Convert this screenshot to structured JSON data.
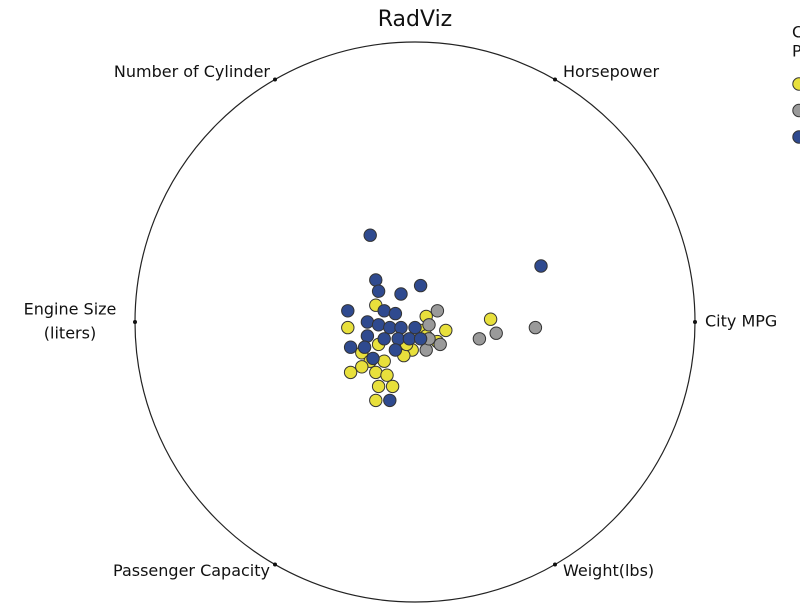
{
  "chart_data": {
    "type": "radviz",
    "title": "RadViz",
    "anchors": [
      [
        "City MPG"
      ],
      [
        "Horsepower"
      ],
      [
        "Number of Cylinder"
      ],
      [
        "Engine Size",
        "(liters)"
      ],
      [
        "Passenger Capacity"
      ],
      [
        "Weight(lbs)"
      ]
    ],
    "legend_title": [
      "C",
      "P"
    ],
    "xlim": [
      -1,
      1
    ],
    "ylim": [
      -1,
      1
    ],
    "series": [
      {
        "color": "#e8e03c",
        "x": [
          -0.14,
          -0.24,
          0.04,
          0.11,
          0.27,
          0.08,
          0.02,
          -0.01,
          -0.04,
          -0.13,
          -0.19,
          -0.16,
          -0.11,
          -0.23,
          -0.19,
          -0.14,
          -0.1,
          -0.13,
          -0.08,
          -0.14,
          -0.03,
          0.04
        ],
        "y": [
          0.06,
          -0.02,
          0.02,
          -0.03,
          0.01,
          -0.07,
          -0.03,
          -0.1,
          -0.12,
          -0.08,
          -0.11,
          -0.14,
          -0.14,
          -0.18,
          -0.16,
          -0.18,
          -0.19,
          -0.23,
          -0.23,
          -0.28,
          -0.08,
          -0.05
        ]
      },
      {
        "color": "#9a9a9a",
        "x": [
          0.08,
          0.05,
          0.04,
          0.23,
          0.29,
          0.43,
          0.09,
          0.05
        ],
        "y": [
          0.04,
          -0.01,
          -0.1,
          -0.06,
          -0.04,
          -0.02,
          -0.08,
          -0.06
        ]
      },
      {
        "color": "#2f4a8f",
        "x": [
          -0.16,
          0.45,
          -0.14,
          -0.13,
          -0.05,
          0.02,
          -0.24,
          -0.11,
          -0.07,
          -0.17,
          -0.13,
          -0.09,
          -0.05,
          0,
          -0.17,
          -0.11,
          -0.06,
          -0.23,
          -0.18,
          -0.07,
          -0.02,
          -0.09,
          -0.15,
          0.02
        ],
        "y": [
          0.31,
          0.2,
          0.15,
          0.11,
          0.1,
          0.13,
          0.04,
          0.04,
          0.03,
          0,
          -0.01,
          -0.02,
          -0.02,
          -0.02,
          -0.05,
          -0.06,
          -0.06,
          -0.09,
          -0.09,
          -0.1,
          -0.06,
          -0.28,
          -0.13,
          -0.06
        ]
      }
    ]
  }
}
